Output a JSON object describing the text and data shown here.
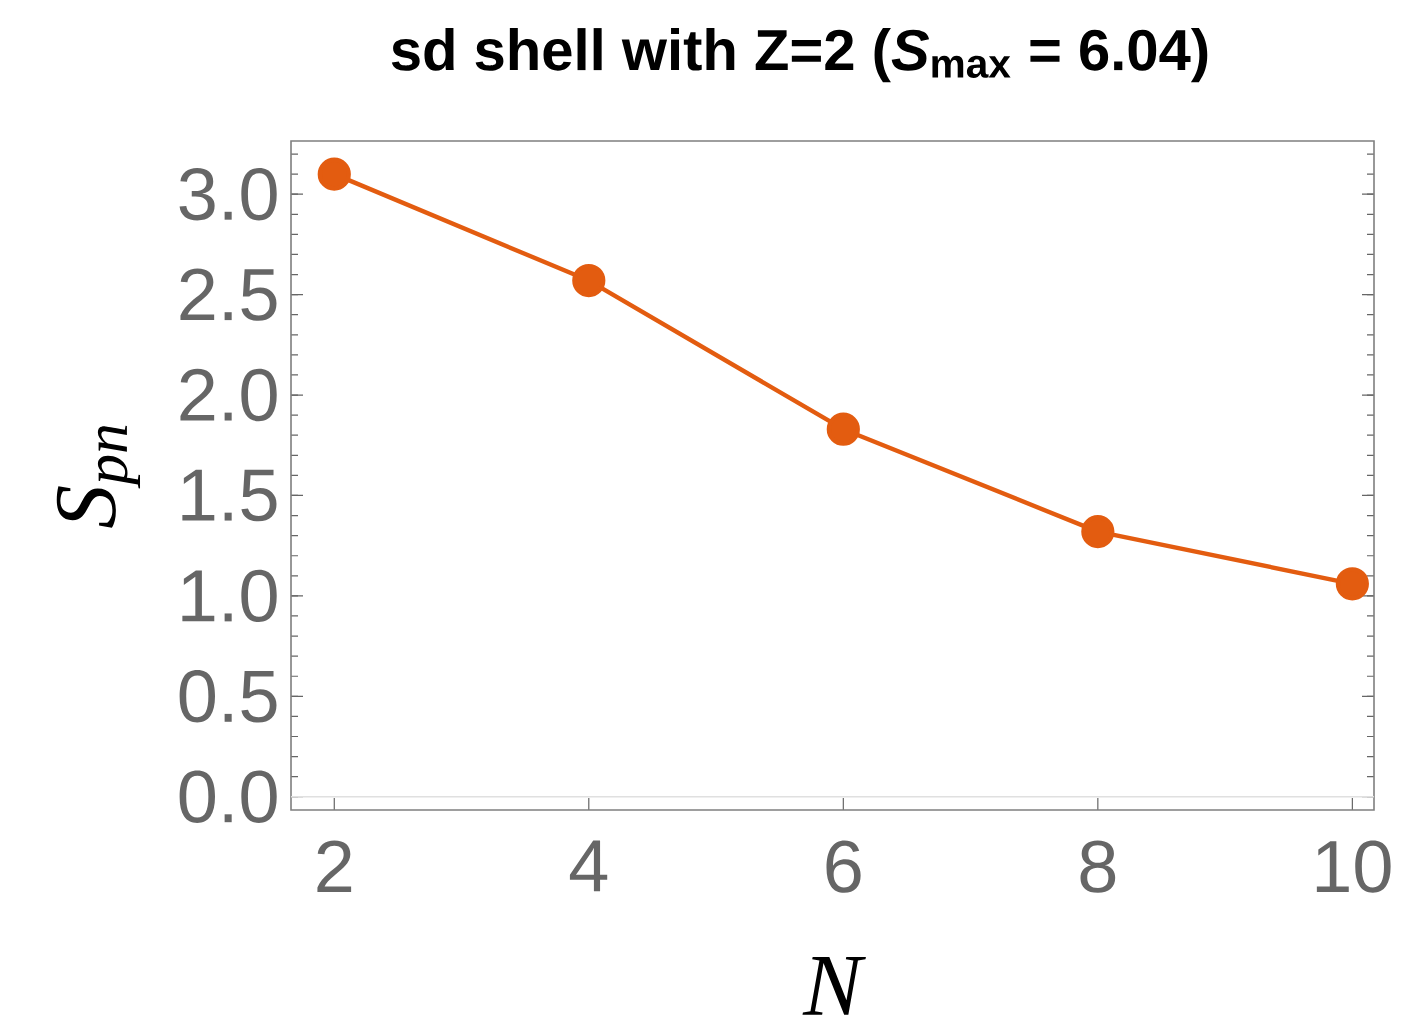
{
  "chart_data": {
    "type": "line",
    "title": "sd shell with Z=2 (*S*$_{max}$ = 6.04)",
    "xlabel": "N",
    "ylabel": "S$_{pn}$",
    "x": [
      2,
      4,
      6,
      8,
      10
    ],
    "values": [
      3.1,
      2.57,
      1.83,
      1.32,
      1.06
    ],
    "color": "#e35c10",
    "marker": "circle",
    "line_style": "solid",
    "xlim": [
      1.66,
      10.17
    ],
    "ylim": [
      -0.066,
      3.265
    ],
    "xticks": [
      2,
      4,
      6,
      8,
      10
    ],
    "yticks": [
      {
        "value": 0,
        "label": "0.0"
      },
      {
        "value": 0.5,
        "label": "0.5"
      },
      {
        "value": 1,
        "label": "1.0"
      },
      {
        "value": 1.5,
        "label": "1.5"
      },
      {
        "value": 2,
        "label": "2.0"
      },
      {
        "value": 2.5,
        "label": "2.5"
      },
      {
        "value": 3,
        "label": "3.0"
      }
    ],
    "ref_lines": [
      {
        "axis": "y",
        "value": 0,
        "color": "#e0e0e0"
      }
    ]
  }
}
